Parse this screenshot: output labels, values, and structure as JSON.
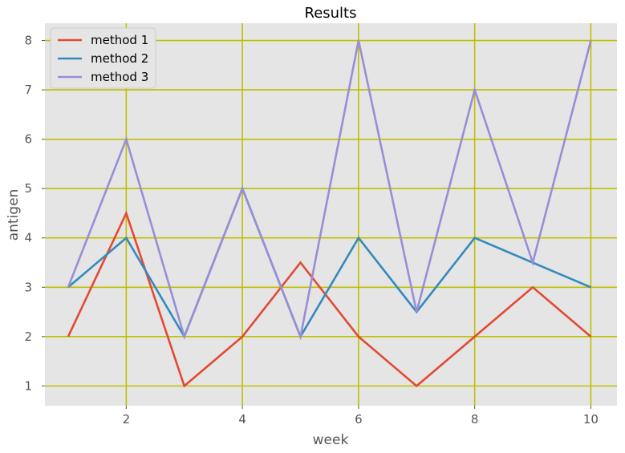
{
  "chart_data": {
    "type": "line",
    "title": "Results",
    "xlabel": "week",
    "ylabel": "antigen",
    "x": [
      1,
      2,
      3,
      4,
      5,
      6,
      7,
      8,
      9,
      10
    ],
    "xlim": [
      0.6,
      10.45
    ],
    "ylim": [
      0.6,
      8.35
    ],
    "xticks": [
      2,
      4,
      6,
      8,
      10
    ],
    "yticks": [
      1,
      2,
      3,
      4,
      5,
      6,
      7,
      8
    ],
    "grid": true,
    "grid_color": "#bfbf00",
    "background": "#e5e5e5",
    "legend_placement": "upper-left",
    "series": [
      {
        "name": "method 1",
        "color": "#e24a33",
        "values": [
          2,
          4.5,
          1,
          2,
          3.5,
          2,
          1,
          2,
          3,
          2
        ]
      },
      {
        "name": "method 2",
        "color": "#348abd",
        "values": [
          3,
          4,
          2,
          5,
          2,
          4,
          2.5,
          4,
          3.5,
          3
        ]
      },
      {
        "name": "method 3",
        "color": "#988ed5",
        "values": [
          3,
          6,
          2,
          5,
          2,
          8,
          2.5,
          7,
          3.5,
          8
        ]
      }
    ]
  }
}
